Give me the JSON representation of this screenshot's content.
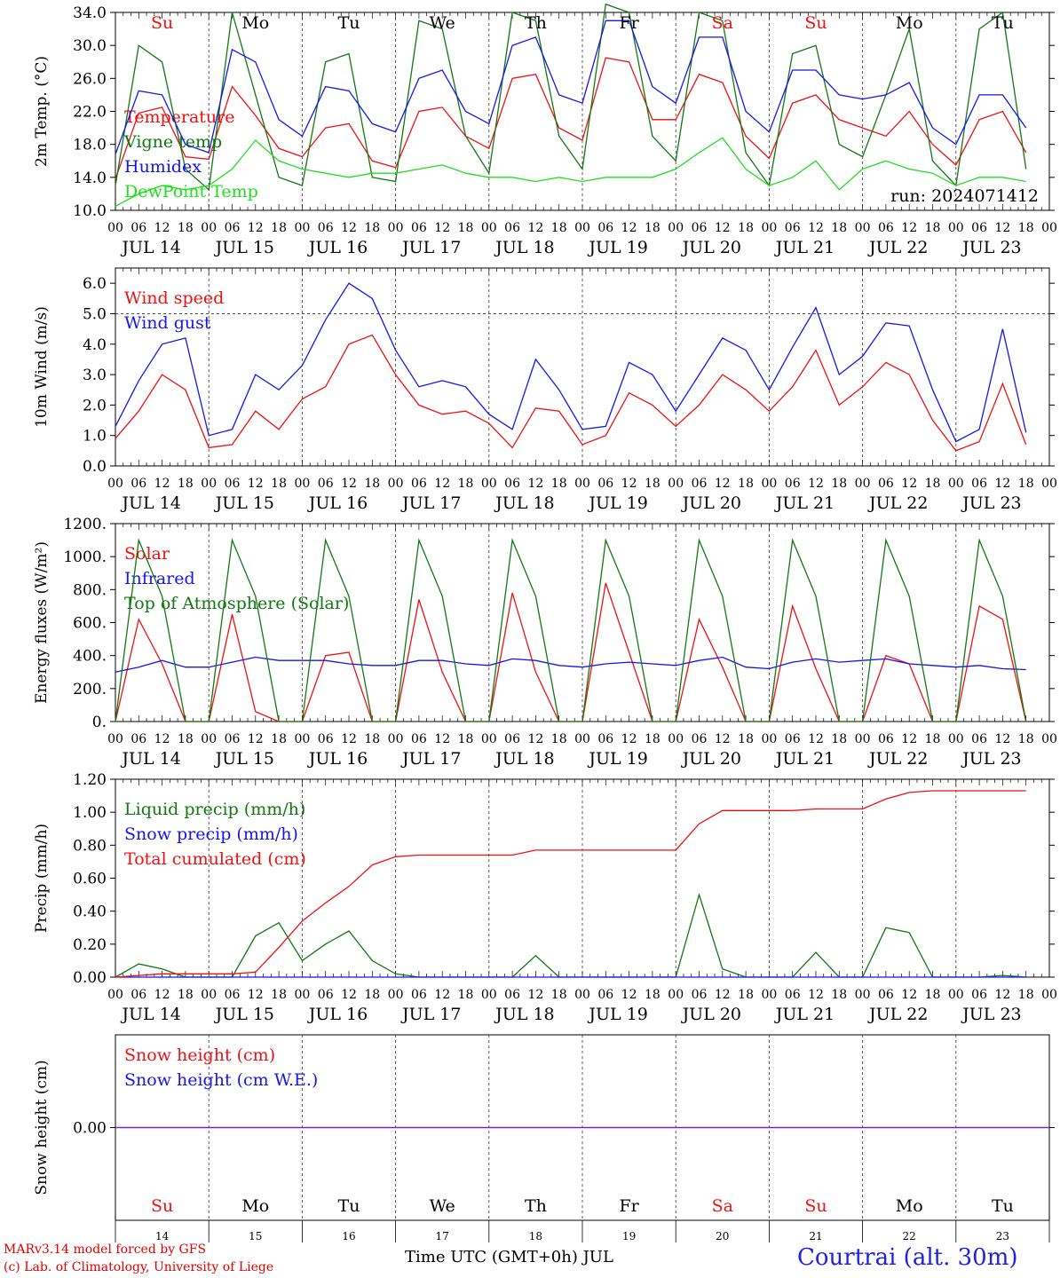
{
  "colors": {
    "red": "#ee1111",
    "green": "#117711",
    "lightgreen": "#22dd22",
    "blue": "#1515ee",
    "purple": "#7722aa"
  },
  "days": [
    "14",
    "15",
    "16",
    "17",
    "18",
    "19",
    "20",
    "21",
    "22",
    "23"
  ],
  "dates": [
    "JUL 14",
    "JUL 15",
    "JUL 16",
    "JUL 17",
    "JUL 18",
    "JUL 19",
    "JUL 20",
    "JUL 21",
    "JUL 22",
    "JUL 23"
  ],
  "weekdays": [
    "Su",
    "Mo",
    "Tu",
    "We",
    "Th",
    "Fr",
    "Sa",
    "Su",
    "Mo",
    "Tu"
  ],
  "weekday_colors": [
    "red",
    "black",
    "black",
    "black",
    "black",
    "black",
    "red",
    "red",
    "black",
    "black"
  ],
  "hour_ticks": [
    "00",
    "06",
    "12",
    "18"
  ],
  "hour_end": "00",
  "footer": {
    "line1": "MARv3.14 model forced by GFS",
    "line2": "(c) Lab. of Climatology, University of Liege",
    "xlabel": "Time UTC (GMT+0h) JUL",
    "station": "Courtrai (alt. 30m)"
  },
  "chart_data": [
    {
      "type": "line",
      "ylabel": "2m Temp. (°C)",
      "ylim": [
        10,
        34
      ],
      "yticks": [
        "10.0",
        "14.0",
        "18.0",
        "22.0",
        "26.0",
        "30.0",
        "34.0"
      ],
      "ytick_values": [
        10,
        14,
        18,
        22,
        26,
        30,
        34
      ],
      "run": "run: 2024071412",
      "x_unit": "hours since JUL 14 00 UTC, 6-hourly",
      "series": [
        {
          "name": "Temperature",
          "color": "red",
          "values": [
            13.8,
            21.8,
            22.5,
            16.5,
            16.2,
            25.0,
            21.5,
            17.5,
            16.5,
            20.0,
            20.5,
            16.0,
            15.2,
            22.0,
            22.5,
            19.0,
            17.5,
            26.0,
            26.5,
            20.0,
            18.5,
            28.5,
            28.0,
            21.0,
            21.0,
            26.5,
            25.5,
            19.0,
            16.3,
            23.0,
            24.0,
            21.0,
            20.0,
            19.0,
            22.0,
            18.0,
            15.5,
            21.0,
            22.0,
            17.0
          ]
        },
        {
          "name": "Vigne temp",
          "color": "green",
          "values": [
            13.0,
            30.0,
            28.0,
            15.0,
            12.5,
            34.0,
            24.0,
            14.0,
            13.0,
            28.0,
            29.0,
            14.0,
            13.5,
            33.0,
            32.0,
            19.0,
            14.5,
            34.0,
            33.0,
            19.0,
            15.0,
            35.0,
            34.0,
            19.0,
            16.0,
            34.0,
            33.0,
            17.0,
            13.0,
            29.0,
            30.0,
            18.0,
            16.5,
            24.0,
            32.0,
            16.0,
            13.0,
            32.0,
            34.0,
            15.0
          ]
        },
        {
          "name": "Humidex",
          "color": "blue",
          "values": [
            16.8,
            24.5,
            24.0,
            18.0,
            17.0,
            29.5,
            28.0,
            21.0,
            19.0,
            25.0,
            24.5,
            20.5,
            19.5,
            26.0,
            27.0,
            22.0,
            20.5,
            30.0,
            31.0,
            24.0,
            23.0,
            33.0,
            33.0,
            25.0,
            23.0,
            31.0,
            31.0,
            22.0,
            19.5,
            27.0,
            27.0,
            24.0,
            23.5,
            24.0,
            25.5,
            20.0,
            18.0,
            24.0,
            24.0,
            20.0
          ]
        },
        {
          "name": "DewPoint Temp",
          "color": "lightgreen",
          "values": [
            10.5,
            12.0,
            13.0,
            12.5,
            13.0,
            15.0,
            18.5,
            16.0,
            15.0,
            14.5,
            14.0,
            14.5,
            14.5,
            15.0,
            15.5,
            14.5,
            14.0,
            14.0,
            13.5,
            14.0,
            13.5,
            14.0,
            14.0,
            14.0,
            15.0,
            17.0,
            18.8,
            15.0,
            13.0,
            14.0,
            16.0,
            12.5,
            15.0,
            16.0,
            15.0,
            14.5,
            13.0,
            14.0,
            14.0,
            13.5
          ]
        }
      ]
    },
    {
      "type": "line",
      "ylabel": "10m Wind (m/s)",
      "ylim": [
        0,
        6.5
      ],
      "yticks": [
        "0.0",
        "1.0",
        "2.0",
        "3.0",
        "4.0",
        "5.0",
        "6.0"
      ],
      "ytick_values": [
        0,
        1,
        2,
        3,
        4,
        5,
        6
      ],
      "refline": 5.0,
      "series": [
        {
          "name": "Wind speed",
          "color": "red",
          "values": [
            0.9,
            1.8,
            3.0,
            2.5,
            0.6,
            0.7,
            1.8,
            1.2,
            2.2,
            2.6,
            4.0,
            4.3,
            3.0,
            2.0,
            1.7,
            1.8,
            1.4,
            0.6,
            1.9,
            1.8,
            0.7,
            1.0,
            2.4,
            2.0,
            1.3,
            2.0,
            3.0,
            2.5,
            1.8,
            2.6,
            3.8,
            2.0,
            2.6,
            3.4,
            3.0,
            1.5,
            0.5,
            0.8,
            2.7,
            0.7
          ]
        },
        {
          "name": "Wind gust",
          "color": "blue",
          "values": [
            1.3,
            2.8,
            4.0,
            4.2,
            1.0,
            1.2,
            3.0,
            2.5,
            3.3,
            4.8,
            6.0,
            5.5,
            3.8,
            2.6,
            2.8,
            2.6,
            1.7,
            1.2,
            3.5,
            2.5,
            1.2,
            1.3,
            3.4,
            3.0,
            1.8,
            3.0,
            4.2,
            3.8,
            2.5,
            3.9,
            5.2,
            3.0,
            3.6,
            4.7,
            4.6,
            2.5,
            0.8,
            1.2,
            4.5,
            1.1
          ]
        }
      ]
    },
    {
      "type": "line",
      "ylabel": "Energy fluxes (W/m²)",
      "ylim": [
        0,
        1200
      ],
      "yticks": [
        "0.",
        "200.",
        "400.",
        "600.",
        "800.",
        "1000.",
        "1200."
      ],
      "ytick_values": [
        0,
        200,
        400,
        600,
        800,
        1000,
        1200
      ],
      "series": [
        {
          "name": "Solar",
          "color": "red",
          "values": [
            0,
            620,
            350,
            0,
            0,
            650,
            60,
            0,
            0,
            400,
            420,
            0,
            0,
            740,
            300,
            0,
            0,
            780,
            300,
            0,
            0,
            840,
            420,
            0,
            0,
            620,
            330,
            0,
            0,
            700,
            320,
            0,
            0,
            400,
            350,
            0,
            0,
            700,
            620,
            0
          ]
        },
        {
          "name": "Infrared",
          "color": "blue",
          "values": [
            300,
            330,
            370,
            330,
            330,
            360,
            390,
            370,
            370,
            370,
            350,
            340,
            340,
            370,
            370,
            350,
            340,
            380,
            370,
            340,
            330,
            350,
            360,
            350,
            340,
            370,
            390,
            330,
            320,
            360,
            380,
            360,
            370,
            380,
            350,
            340,
            330,
            340,
            320,
            315
          ]
        },
        {
          "name": "Top of Atmosphere (Solar)",
          "color": "green",
          "values": [
            0,
            1100,
            760,
            0,
            0,
            1100,
            760,
            0,
            0,
            1100,
            760,
            0,
            0,
            1100,
            760,
            0,
            0,
            1100,
            760,
            0,
            0,
            1100,
            760,
            0,
            0,
            1100,
            760,
            0,
            0,
            1100,
            760,
            0,
            0,
            1100,
            760,
            0,
            0,
            1100,
            760,
            0
          ]
        }
      ]
    },
    {
      "type": "line",
      "ylabel": "Precip (mm/h)",
      "ylim": [
        0,
        1.2
      ],
      "yticks": [
        "0.00",
        "0.20",
        "0.40",
        "0.60",
        "0.80",
        "1.00",
        "1.20"
      ],
      "ytick_values": [
        0,
        0.2,
        0.4,
        0.6,
        0.8,
        1.0,
        1.2
      ],
      "series": [
        {
          "name": "Liquid precip (mm/h)",
          "color": "green",
          "values": [
            0,
            0.08,
            0.05,
            0,
            0,
            0,
            0.25,
            0.33,
            0.1,
            0.2,
            0.28,
            0.1,
            0.02,
            0,
            0,
            0,
            0,
            0,
            0.13,
            0,
            0,
            0,
            0,
            0,
            0,
            0.5,
            0.05,
            0,
            0,
            0,
            0.15,
            0,
            0,
            0.3,
            0.27,
            0,
            0,
            0,
            0.01,
            0
          ]
        },
        {
          "name": "Snow precip (mm/h)",
          "color": "blue",
          "values": [
            0,
            0,
            0,
            0,
            0,
            0,
            0,
            0,
            0,
            0,
            0,
            0,
            0,
            0,
            0,
            0,
            0,
            0,
            0,
            0,
            0,
            0,
            0,
            0,
            0,
            0,
            0,
            0,
            0,
            0,
            0,
            0,
            0,
            0,
            0,
            0,
            0,
            0,
            0,
            0
          ]
        },
        {
          "name": "Total cumulated (cm)",
          "color": "red",
          "values": [
            0,
            0.01,
            0.02,
            0.02,
            0.02,
            0.02,
            0.03,
            0.18,
            0.34,
            0.45,
            0.55,
            0.68,
            0.73,
            0.74,
            0.74,
            0.74,
            0.74,
            0.74,
            0.77,
            0.77,
            0.77,
            0.77,
            0.77,
            0.77,
            0.77,
            0.93,
            1.01,
            1.01,
            1.01,
            1.01,
            1.02,
            1.02,
            1.02,
            1.08,
            1.12,
            1.13,
            1.13,
            1.13,
            1.13,
            1.13
          ]
        }
      ]
    },
    {
      "type": "line",
      "ylabel": "Snow height (cm)",
      "ylim": [
        -1,
        1
      ],
      "yticks": [
        "0.00"
      ],
      "ytick_values": [
        0
      ],
      "series": [
        {
          "name": "Snow height (cm)",
          "color": "red",
          "values": [
            0,
            0
          ]
        },
        {
          "name": "Snow height (cm W.E.)",
          "color": "blue",
          "values": [
            0,
            0
          ]
        }
      ]
    }
  ]
}
